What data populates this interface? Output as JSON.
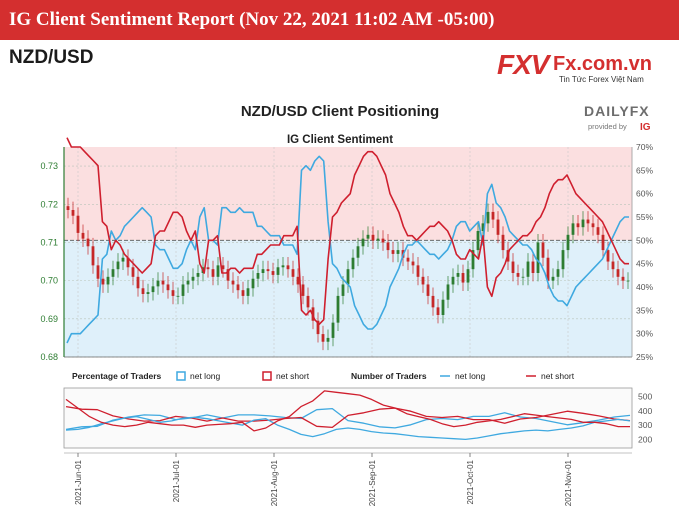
{
  "header": {
    "banner_title": "IG Client Sentiment Report (Nov 22, 2021 11:02 AM -05:00)",
    "pair": "NZD/USD"
  },
  "logo": {
    "mark": "FXV",
    "domain": "Fx.com.vn",
    "tagline": "Tin Tức Forex Việt Nam"
  },
  "dailyfx": {
    "name": "DAILYFX",
    "provided_by": "provided by",
    "ig": "IG"
  },
  "colors": {
    "net_long": "#3fa9e0",
    "net_short": "#cf1f2e",
    "up_candle": "#2e7d32",
    "down_candle": "#c62828",
    "long_fill": "#dff0fa",
    "short_fill": "#fbdfe0",
    "banner": "#d42f2f"
  },
  "chart_data": [
    {
      "type": "line",
      "title": "NZD/USD Client Positioning",
      "subtitle": "IG Client Sentiment",
      "price_axis": {
        "ticks": [
          "0.73",
          "0.72",
          "0.71",
          "0.70",
          "0.69",
          "0.68"
        ],
        "ylim": [
          0.68,
          0.735
        ]
      },
      "pct_axis": {
        "ticks": [
          "70%",
          "65%",
          "60%",
          "55%",
          "50%",
          "45%",
          "40%",
          "35%",
          "30%",
          "25%"
        ],
        "ylim": [
          25,
          70
        ]
      },
      "x_ticks": [
        "2021-Jun-01",
        "2021-Jul-01",
        "2021-Aug-01",
        "2021-Sep-01",
        "2021-Oct-01",
        "2021-Nov-01"
      ],
      "series": [
        {
          "name": "net long",
          "unit": "%",
          "values": [
            28,
            30,
            30,
            30,
            31,
            32,
            33,
            34,
            46,
            47,
            52,
            50,
            51,
            53,
            54,
            55,
            56,
            57,
            56,
            55,
            49,
            48,
            48,
            46,
            44,
            44,
            45,
            48,
            50,
            48,
            55,
            57,
            50,
            50,
            49,
            57,
            57,
            56,
            56,
            57,
            56,
            56,
            56,
            53,
            53,
            52,
            51,
            51,
            51,
            49,
            49,
            49,
            47,
            65,
            66,
            65,
            67,
            68,
            67,
            54,
            45,
            44,
            42,
            41,
            40,
            36,
            34,
            32,
            31,
            31,
            32,
            34,
            36,
            40,
            42,
            44,
            47,
            49,
            49,
            50,
            49,
            48,
            47,
            47,
            46,
            47,
            48,
            50,
            53,
            54,
            54,
            52,
            53,
            54,
            49,
            60,
            62,
            58,
            57,
            55,
            52,
            51,
            50,
            49,
            49,
            48,
            46,
            45,
            43,
            40,
            38,
            37,
            37,
            36,
            38,
            40,
            41,
            42,
            43,
            44,
            45,
            46,
            48,
            50,
            52,
            54,
            55,
            55
          ]
        },
        {
          "name": "net short",
          "unit": "%",
          "values": [
            72,
            70,
            70,
            70,
            69,
            68,
            67,
            66,
            54,
            53,
            48,
            50,
            49,
            47,
            46,
            45,
            44,
            43,
            44,
            45,
            51,
            52,
            52,
            54,
            56,
            56,
            55,
            52,
            50,
            52,
            45,
            43,
            50,
            50,
            51,
            43,
            43,
            44,
            44,
            43,
            44,
            44,
            44,
            47,
            47,
            48,
            49,
            49,
            49,
            51,
            51,
            51,
            53,
            35,
            34,
            35,
            33,
            32,
            33,
            46,
            55,
            56,
            58,
            59,
            60,
            64,
            66,
            68,
            69,
            69,
            68,
            66,
            64,
            60,
            58,
            56,
            53,
            51,
            51,
            50,
            51,
            52,
            53,
            53,
            54,
            53,
            52,
            50,
            47,
            46,
            46,
            48,
            47,
            46,
            51,
            40,
            38,
            42,
            43,
            45,
            48,
            49,
            50,
            51,
            51,
            52,
            54,
            55,
            57,
            60,
            62,
            63,
            63,
            64,
            62,
            60,
            59,
            58,
            57,
            56,
            55,
            54,
            52,
            50,
            48,
            46,
            45,
            45
          ]
        },
        {
          "name": "NZD/USD close",
          "values": [
            0.7185,
            0.717,
            0.7125,
            0.711,
            0.709,
            0.704,
            0.7005,
            0.699,
            0.701,
            0.703,
            0.705,
            0.706,
            0.7035,
            0.701,
            0.698,
            0.6965,
            0.697,
            0.6985,
            0.7,
            0.699,
            0.6975,
            0.696,
            0.696,
            0.699,
            0.7,
            0.701,
            0.702,
            0.7035,
            0.703,
            0.701,
            0.704,
            0.703,
            0.7,
            0.699,
            0.6975,
            0.696,
            0.698,
            0.7005,
            0.702,
            0.703,
            0.7025,
            0.7015,
            0.7035,
            0.704,
            0.703,
            0.701,
            0.699,
            0.696,
            0.693,
            0.6895,
            0.686,
            0.684,
            0.685,
            0.689,
            0.696,
            0.699,
            0.703,
            0.706,
            0.709,
            0.711,
            0.712,
            0.7105,
            0.711,
            0.71,
            0.708,
            0.707,
            0.708,
            0.706,
            0.705,
            0.704,
            0.701,
            0.699,
            0.696,
            0.693,
            0.691,
            0.695,
            0.699,
            0.701,
            0.702,
            0.6995,
            0.703,
            0.708,
            0.713,
            0.715,
            0.718,
            0.716,
            0.712,
            0.708,
            0.705,
            0.702,
            0.701,
            0.701,
            0.705,
            0.702,
            0.71,
            0.706,
            0.7,
            0.701,
            0.703,
            0.708,
            0.712,
            0.715,
            0.714,
            0.716,
            0.715,
            0.714,
            0.712,
            0.708,
            0.705,
            0.703,
            0.701,
            0.7,
            0.7
          ]
        },
        {
          "name": "Percentage of Traders · net long",
          "values": [
            0.28,
            0.33,
            0.34,
            0.46,
            0.52,
            0.56,
            0.55,
            0.47,
            0.5,
            0.56,
            0.5,
            0.56,
            0.56,
            0.54,
            0.51,
            0.49,
            0.66,
            0.68,
            0.45,
            0.4,
            0.33,
            0.31,
            0.37,
            0.47,
            0.49,
            0.47,
            0.53,
            0.53,
            0.6,
            0.52,
            0.49,
            0.43,
            0.37,
            0.41,
            0.46,
            0.52,
            0.55
          ]
        },
        {
          "name": "Percentage of Traders · net short",
          "values": [
            0.72,
            0.67,
            0.66,
            0.54,
            0.48,
            0.44,
            0.45,
            0.53,
            0.5,
            0.44,
            0.5,
            0.44,
            0.44,
            0.46,
            0.49,
            0.51,
            0.34,
            0.32,
            0.55,
            0.6,
            0.67,
            0.69,
            0.63,
            0.53,
            0.51,
            0.53,
            0.47,
            0.47,
            0.4,
            0.48,
            0.51,
            0.57,
            0.63,
            0.59,
            0.54,
            0.48,
            0.45
          ]
        }
      ]
    },
    {
      "type": "line",
      "title": "Number of Traders",
      "y_ticks": [
        "500",
        "400",
        "300",
        "200"
      ],
      "ylim": [
        140,
        560
      ],
      "series": [
        {
          "name": "net long",
          "values": [
            265,
            270,
            285,
            310,
            330,
            350,
            360,
            340,
            320,
            330,
            350,
            355,
            345,
            330,
            315,
            300,
            335,
            345,
            300,
            270,
            235,
            220,
            240,
            270,
            280,
            270,
            255,
            245,
            240,
            230,
            220,
            215,
            210,
            205,
            200,
            210,
            225,
            240,
            250,
            260,
            265,
            260,
            270,
            280,
            295,
            320,
            330,
            340,
            330
          ]
        },
        {
          "name": "net short",
          "values": [
            480,
            420,
            360,
            320,
            300,
            290,
            300,
            320,
            310,
            300,
            300,
            285,
            300,
            305,
            310,
            320,
            260,
            280,
            330,
            360,
            430,
            470,
            540,
            530,
            520,
            510,
            480,
            440,
            420,
            380,
            360,
            340,
            310,
            290,
            300,
            320,
            330,
            340,
            360,
            380,
            370,
            360,
            350,
            340,
            320,
            320,
            310,
            290,
            290
          ]
        }
      ]
    }
  ],
  "legends": {
    "pct_title": "Percentage of Traders",
    "num_title": "Number of Traders",
    "net_long": "net long",
    "net_short": "net short"
  }
}
